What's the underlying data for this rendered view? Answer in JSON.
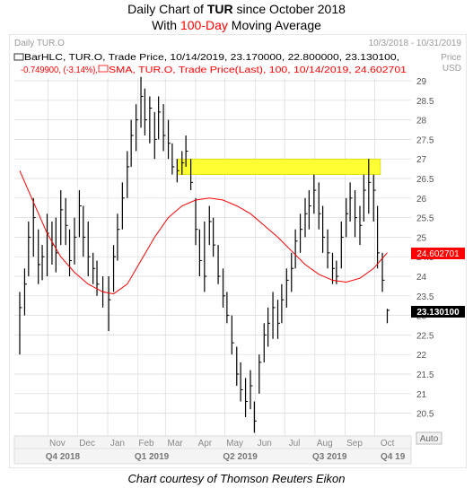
{
  "title_line1": {
    "prefix": "Daily Chart of ",
    "ticker": "TUR",
    "suffix": " since October 2018"
  },
  "title_line2": {
    "prefix": "With ",
    "highlight": "100-Day",
    "suffix": " Moving Average"
  },
  "caption": "Chart courtesy of Thomson Reuters Eikon",
  "header": {
    "left": "Daily TUR.O",
    "date_range": "10/3/2018 - 10/31/2019",
    "price_label": "Price",
    "currency_label": "USD"
  },
  "legend": {
    "line1": "BarHLC, TUR.O, Trade Price, 10/14/2019, 23.170000, 22.800000, 23.130100,",
    "line2_change": "-0.749900, (-3.14%),",
    "line2_sma": "SMA, TUR.O, Trade Price(Last), 100, 10/14/2019, 24.602701"
  },
  "auto_label": "Auto",
  "last_price_label": "23.130100",
  "sma_label": "24.602701",
  "colors": {
    "bars": "#000000",
    "sma": "#ff0000",
    "highlight_band": "#ffff33",
    "grid": "#d9d9d9",
    "label_bg": "#ffffff"
  },
  "chart_data": {
    "type": "line",
    "title": "",
    "ylim": [
      19.9,
      29.1
    ],
    "yticks": [
      "29",
      "28.5",
      "28",
      "27.5",
      "27",
      "26.5",
      "26",
      "25.5",
      "25",
      "24.5",
      "24",
      "23.5",
      "23",
      "22.5",
      "22",
      "21.5",
      "21",
      "20.5"
    ],
    "months": [
      "Nov",
      "Dec",
      "Jan",
      "Feb",
      "Mar",
      "Apr",
      "May",
      "Jun",
      "Jul",
      "Aug",
      "Sep",
      "Oct"
    ],
    "quarters": [
      "Q4 2018",
      "Q1 2019",
      "Q2 2019",
      "Q3 2019",
      "Q4 19"
    ],
    "highlight_range": [
      26.6,
      27.0
    ],
    "series": [
      {
        "name": "BarHLC, TUR.O",
        "type": "hlc",
        "points": [
          {
            "x": "2018-10-03",
            "h": 23.6,
            "l": 22.0,
            "c": 23.2
          },
          {
            "x": "2018-10-08",
            "h": 24.2,
            "l": 23.0,
            "c": 23.8
          },
          {
            "x": "2018-10-12",
            "h": 25.4,
            "l": 24.0,
            "c": 25.0
          },
          {
            "x": "2018-10-17",
            "h": 26.0,
            "l": 24.5,
            "c": 25.5
          },
          {
            "x": "2018-10-22",
            "h": 25.2,
            "l": 23.8,
            "c": 24.3
          },
          {
            "x": "2018-10-26",
            "h": 24.8,
            "l": 23.9,
            "c": 24.5
          },
          {
            "x": "2018-10-31",
            "h": 25.6,
            "l": 24.0,
            "c": 25.1
          },
          {
            "x": "2018-11-05",
            "h": 25.4,
            "l": 24.3,
            "c": 24.8
          },
          {
            "x": "2018-11-09",
            "h": 25.5,
            "l": 24.1,
            "c": 24.6
          },
          {
            "x": "2018-11-14",
            "h": 26.2,
            "l": 24.8,
            "c": 25.7
          },
          {
            "x": "2018-11-19",
            "h": 26.0,
            "l": 24.8,
            "c": 25.3
          },
          {
            "x": "2018-11-23",
            "h": 25.2,
            "l": 24.0,
            "c": 24.4
          },
          {
            "x": "2018-11-28",
            "h": 25.5,
            "l": 24.3,
            "c": 25.0
          },
          {
            "x": "2018-12-03",
            "h": 26.2,
            "l": 25.0,
            "c": 25.8
          },
          {
            "x": "2018-12-07",
            "h": 25.8,
            "l": 24.5,
            "c": 25.0
          },
          {
            "x": "2018-12-12",
            "h": 25.4,
            "l": 24.0,
            "c": 24.5
          },
          {
            "x": "2018-12-17",
            "h": 24.6,
            "l": 23.8,
            "c": 24.2
          },
          {
            "x": "2018-12-21",
            "h": 24.4,
            "l": 23.5,
            "c": 23.8
          },
          {
            "x": "2018-12-27",
            "h": 24.0,
            "l": 23.2,
            "c": 23.6
          },
          {
            "x": "2019-01-02",
            "h": 24.0,
            "l": 22.6,
            "c": 23.4
          },
          {
            "x": "2019-01-07",
            "h": 24.8,
            "l": 23.6,
            "c": 24.5
          },
          {
            "x": "2019-01-11",
            "h": 25.6,
            "l": 24.4,
            "c": 25.2
          },
          {
            "x": "2019-01-16",
            "h": 26.4,
            "l": 25.2,
            "c": 26.0
          },
          {
            "x": "2019-01-21",
            "h": 27.2,
            "l": 26.0,
            "c": 26.8
          },
          {
            "x": "2019-01-25",
            "h": 28.0,
            "l": 26.8,
            "c": 27.6
          },
          {
            "x": "2019-01-30",
            "h": 28.4,
            "l": 27.2,
            "c": 28.0
          },
          {
            "x": "2019-02-04",
            "h": 29.1,
            "l": 27.8,
            "c": 28.6
          },
          {
            "x": "2019-02-08",
            "h": 28.8,
            "l": 27.6,
            "c": 28.0
          },
          {
            "x": "2019-02-13",
            "h": 28.6,
            "l": 27.4,
            "c": 28.3
          },
          {
            "x": "2019-02-18",
            "h": 28.2,
            "l": 27.0,
            "c": 27.5
          },
          {
            "x": "2019-02-22",
            "h": 28.6,
            "l": 27.5,
            "c": 28.2
          },
          {
            "x": "2019-02-27",
            "h": 28.4,
            "l": 27.2,
            "c": 27.6
          },
          {
            "x": "2019-03-04",
            "h": 28.0,
            "l": 27.0,
            "c": 27.4
          },
          {
            "x": "2019-03-08",
            "h": 27.4,
            "l": 26.6,
            "c": 26.8
          },
          {
            "x": "2019-03-13",
            "h": 27.0,
            "l": 26.4,
            "c": 26.7
          },
          {
            "x": "2019-03-18",
            "h": 27.2,
            "l": 26.6,
            "c": 26.9
          },
          {
            "x": "2019-03-22",
            "h": 27.6,
            "l": 26.8,
            "c": 27.2
          },
          {
            "x": "2019-03-27",
            "h": 27.0,
            "l": 26.2,
            "c": 26.4
          },
          {
            "x": "2019-04-01",
            "h": 26.0,
            "l": 24.8,
            "c": 25.2
          },
          {
            "x": "2019-04-05",
            "h": 25.2,
            "l": 24.0,
            "c": 24.4
          },
          {
            "x": "2019-04-10",
            "h": 25.4,
            "l": 23.6,
            "c": 24.0
          },
          {
            "x": "2019-04-15",
            "h": 25.8,
            "l": 24.8,
            "c": 25.4
          },
          {
            "x": "2019-04-19",
            "h": 25.5,
            "l": 24.5,
            "c": 24.8
          },
          {
            "x": "2019-04-24",
            "h": 24.8,
            "l": 23.8,
            "c": 24.0
          },
          {
            "x": "2019-04-29",
            "h": 24.2,
            "l": 23.2,
            "c": 23.5
          },
          {
            "x": "2019-05-03",
            "h": 23.6,
            "l": 22.8,
            "c": 23.0
          },
          {
            "x": "2019-05-08",
            "h": 23.0,
            "l": 22.0,
            "c": 22.3
          },
          {
            "x": "2019-05-13",
            "h": 22.2,
            "l": 21.2,
            "c": 21.5
          },
          {
            "x": "2019-05-17",
            "h": 21.8,
            "l": 20.8,
            "c": 21.1
          },
          {
            "x": "2019-05-22",
            "h": 21.4,
            "l": 20.4,
            "c": 20.8
          },
          {
            "x": "2019-05-27",
            "h": 21.6,
            "l": 20.6,
            "c": 21.2
          },
          {
            "x": "2019-05-31",
            "h": 20.8,
            "l": 20.0,
            "c": 20.3
          },
          {
            "x": "2019-06-05",
            "h": 22.0,
            "l": 21.0,
            "c": 21.8
          },
          {
            "x": "2019-06-10",
            "h": 22.8,
            "l": 21.8,
            "c": 22.5
          },
          {
            "x": "2019-06-14",
            "h": 23.2,
            "l": 22.2,
            "c": 22.8
          },
          {
            "x": "2019-06-19",
            "h": 23.6,
            "l": 22.4,
            "c": 23.2
          },
          {
            "x": "2019-06-24",
            "h": 23.4,
            "l": 22.4,
            "c": 22.8
          },
          {
            "x": "2019-06-28",
            "h": 23.8,
            "l": 22.8,
            "c": 23.4
          },
          {
            "x": "2019-07-03",
            "h": 24.2,
            "l": 23.2,
            "c": 23.9
          },
          {
            "x": "2019-07-08",
            "h": 24.6,
            "l": 23.6,
            "c": 24.2
          },
          {
            "x": "2019-07-12",
            "h": 25.2,
            "l": 24.2,
            "c": 24.9
          },
          {
            "x": "2019-07-17",
            "h": 25.6,
            "l": 24.6,
            "c": 25.2
          },
          {
            "x": "2019-07-22",
            "h": 26.0,
            "l": 25.0,
            "c": 25.6
          },
          {
            "x": "2019-07-26",
            "h": 26.2,
            "l": 25.2,
            "c": 25.8
          },
          {
            "x": "2019-07-31",
            "h": 26.6,
            "l": 25.6,
            "c": 26.2
          },
          {
            "x": "2019-08-05",
            "h": 26.4,
            "l": 25.2,
            "c": 25.6
          },
          {
            "x": "2019-08-09",
            "h": 25.8,
            "l": 24.6,
            "c": 25.0
          },
          {
            "x": "2019-08-14",
            "h": 25.2,
            "l": 24.2,
            "c": 24.6
          },
          {
            "x": "2019-08-19",
            "h": 24.6,
            "l": 23.8,
            "c": 24.2
          },
          {
            "x": "2019-08-23",
            "h": 24.4,
            "l": 23.8,
            "c": 24.0
          },
          {
            "x": "2019-08-28",
            "h": 25.4,
            "l": 24.2,
            "c": 25.0
          },
          {
            "x": "2019-09-02",
            "h": 26.0,
            "l": 25.0,
            "c": 25.6
          },
          {
            "x": "2019-09-06",
            "h": 26.4,
            "l": 25.4,
            "c": 26.0
          },
          {
            "x": "2019-09-11",
            "h": 26.2,
            "l": 25.0,
            "c": 25.5
          },
          {
            "x": "2019-09-16",
            "h": 25.8,
            "l": 24.8,
            "c": 25.3
          },
          {
            "x": "2019-09-20",
            "h": 26.6,
            "l": 25.4,
            "c": 26.2
          },
          {
            "x": "2019-09-25",
            "h": 27.0,
            "l": 25.6,
            "c": 26.4
          },
          {
            "x": "2019-09-30",
            "h": 26.6,
            "l": 25.4,
            "c": 26.2
          },
          {
            "x": "2019-10-04",
            "h": 25.8,
            "l": 24.2,
            "c": 24.6
          },
          {
            "x": "2019-10-09",
            "h": 24.6,
            "l": 23.6,
            "c": 23.9
          },
          {
            "x": "2019-10-14",
            "h": 23.17,
            "l": 22.8,
            "c": 23.13
          }
        ]
      },
      {
        "name": "SMA, TUR.O, Trade Price(Last), 100",
        "type": "line",
        "points": [
          {
            "x": "2018-10-03",
            "y": 26.7
          },
          {
            "x": "2018-10-17",
            "y": 25.9
          },
          {
            "x": "2018-10-31",
            "y": 25.1
          },
          {
            "x": "2018-11-14",
            "y": 24.5
          },
          {
            "x": "2018-11-28",
            "y": 24.1
          },
          {
            "x": "2018-12-12",
            "y": 23.8
          },
          {
            "x": "2018-12-27",
            "y": 23.6
          },
          {
            "x": "2019-01-07",
            "y": 23.55
          },
          {
            "x": "2019-01-21",
            "y": 23.8
          },
          {
            "x": "2019-02-04",
            "y": 24.4
          },
          {
            "x": "2019-02-18",
            "y": 25.0
          },
          {
            "x": "2019-03-04",
            "y": 25.5
          },
          {
            "x": "2019-03-18",
            "y": 25.8
          },
          {
            "x": "2019-04-01",
            "y": 25.95
          },
          {
            "x": "2019-04-15",
            "y": 26.0
          },
          {
            "x": "2019-04-29",
            "y": 25.95
          },
          {
            "x": "2019-05-13",
            "y": 25.8
          },
          {
            "x": "2019-05-27",
            "y": 25.6
          },
          {
            "x": "2019-06-10",
            "y": 25.3
          },
          {
            "x": "2019-06-24",
            "y": 25.0
          },
          {
            "x": "2019-07-08",
            "y": 24.65
          },
          {
            "x": "2019-07-22",
            "y": 24.3
          },
          {
            "x": "2019-08-05",
            "y": 24.05
          },
          {
            "x": "2019-08-19",
            "y": 23.9
          },
          {
            "x": "2019-09-02",
            "y": 23.85
          },
          {
            "x": "2019-09-16",
            "y": 23.95
          },
          {
            "x": "2019-09-30",
            "y": 24.2
          },
          {
            "x": "2019-10-14",
            "y": 24.602701
          }
        ]
      }
    ]
  }
}
